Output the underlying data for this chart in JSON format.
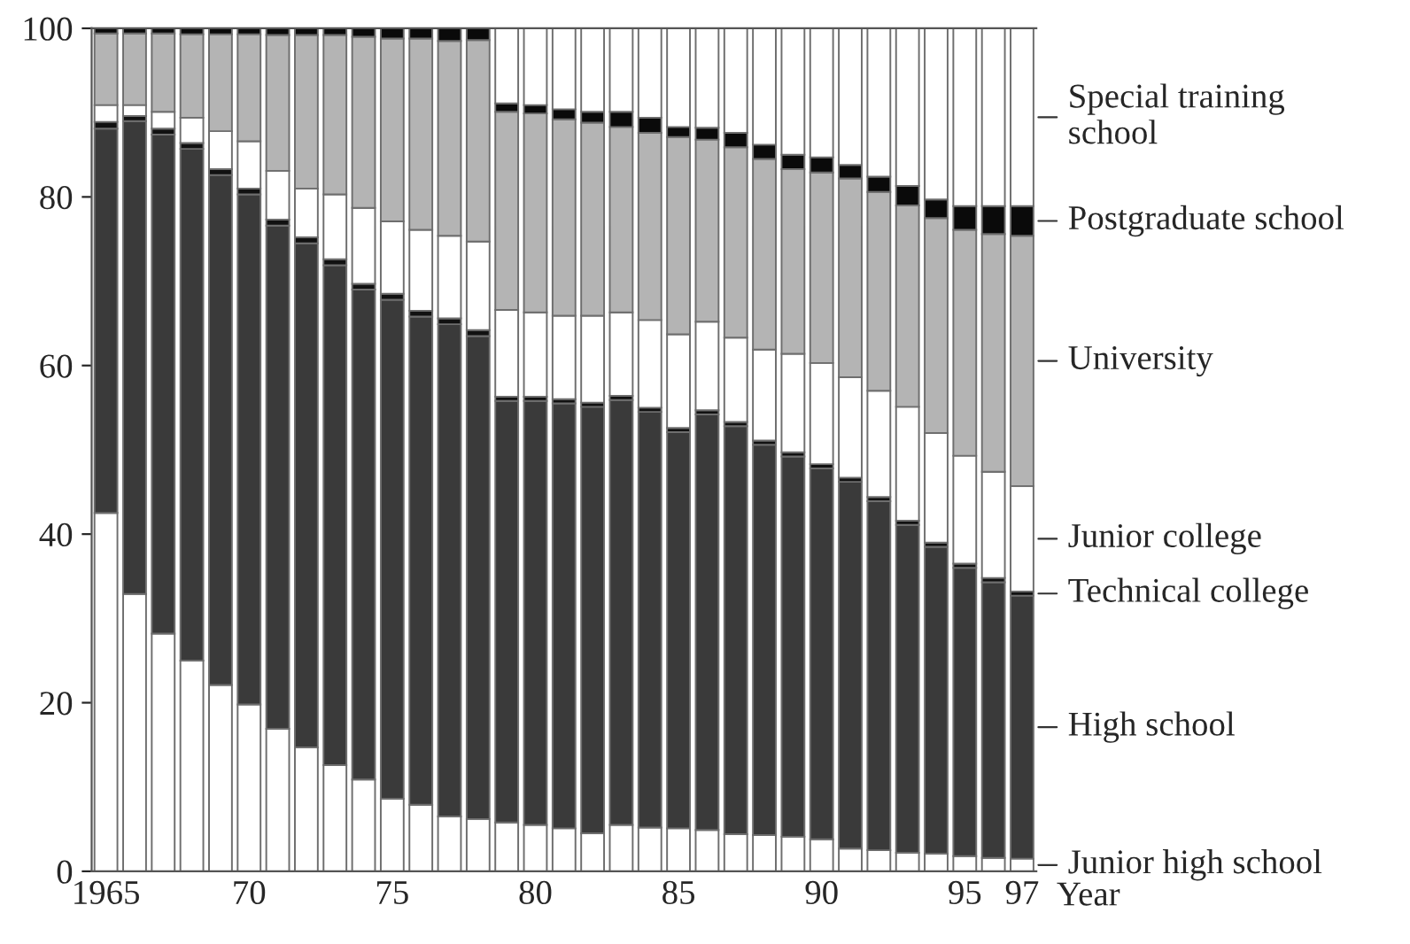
{
  "chart_data": {
    "type": "bar",
    "stacked": true,
    "xlabel": "Year",
    "legend": false,
    "grid": false,
    "categories": [
      "1965",
      null,
      null,
      null,
      null,
      "70",
      null,
      null,
      null,
      null,
      "75",
      null,
      null,
      null,
      null,
      "80",
      null,
      null,
      null,
      null,
      "85",
      null,
      null,
      null,
      null,
      "90",
      null,
      null,
      null,
      null,
      "95",
      null,
      "97"
    ],
    "ylim": [
      0,
      100
    ],
    "yticks": [
      0,
      20,
      40,
      60,
      80,
      100
    ],
    "series": [
      {
        "name": "Junior high school",
        "color": "#ffffff",
        "values": [
          42.5,
          32.9,
          28.2,
          25.0,
          22.1,
          19.8,
          16.9,
          14.7,
          12.6,
          10.9,
          8.6,
          7.9,
          6.5,
          6.2,
          5.8,
          5.5,
          5.1,
          4.5,
          5.5,
          5.2,
          5.1,
          4.9,
          4.4,
          4.3,
          4.1,
          3.8,
          2.7,
          2.5,
          2.2,
          2.1,
          1.8,
          1.6,
          1.5
        ]
      },
      {
        "name": "High school",
        "color": "#3a3a3a",
        "values": [
          45.6,
          56.1,
          59.2,
          60.7,
          60.5,
          60.5,
          59.7,
          59.8,
          59.3,
          58.1,
          59.2,
          57.9,
          58.4,
          57.3,
          50.0,
          50.3,
          50.4,
          50.6,
          50.4,
          49.3,
          47.0,
          49.3,
          48.4,
          46.3,
          45.1,
          44.0,
          43.5,
          41.4,
          38.9,
          36.4,
          34.2,
          32.7,
          31.2
        ]
      },
      {
        "name": "Technical college",
        "color": "#111111",
        "values": [
          0.8,
          0.6,
          0.7,
          0.7,
          0.7,
          0.7,
          0.7,
          0.7,
          0.7,
          0.7,
          0.7,
          0.7,
          0.7,
          0.7,
          0.5,
          0.5,
          0.5,
          0.5,
          0.5,
          0.5,
          0.5,
          0.5,
          0.5,
          0.5,
          0.5,
          0.5,
          0.5,
          0.5,
          0.5,
          0.5,
          0.5,
          0.5,
          0.5
        ]
      },
      {
        "name": "Junior college",
        "color": "#ffffff",
        "values": [
          2.0,
          1.3,
          2.0,
          3.0,
          4.5,
          5.6,
          5.8,
          5.8,
          7.7,
          9.0,
          8.6,
          9.6,
          9.8,
          10.5,
          10.3,
          10.0,
          9.9,
          10.3,
          9.9,
          10.4,
          11.1,
          10.5,
          10.0,
          10.8,
          11.7,
          12.0,
          11.9,
          12.6,
          13.5,
          13.0,
          12.8,
          12.6,
          12.5
        ]
      },
      {
        "name": "University",
        "color": "#b4b4b4",
        "values": [
          8.5,
          8.5,
          9.3,
          9.9,
          11.5,
          12.7,
          16.1,
          18.2,
          18.9,
          20.3,
          21.7,
          22.7,
          23.1,
          23.9,
          23.5,
          23.6,
          23.3,
          22.9,
          22.0,
          22.2,
          23.4,
          21.6,
          22.6,
          22.6,
          21.9,
          22.6,
          23.6,
          23.6,
          23.9,
          25.5,
          26.8,
          28.2,
          29.7
        ]
      },
      {
        "name": "Postgraduate school",
        "color": "#0a0a0a",
        "values": [
          0.6,
          0.6,
          0.6,
          0.7,
          0.7,
          0.7,
          0.8,
          0.8,
          0.8,
          1.0,
          1.2,
          1.2,
          1.5,
          1.4,
          1.0,
          1.0,
          1.2,
          1.3,
          1.8,
          1.8,
          1.2,
          1.4,
          1.7,
          1.7,
          1.7,
          1.8,
          1.6,
          1.8,
          2.3,
          2.2,
          2.8,
          3.3,
          3.5
        ]
      },
      {
        "name": "Special training\nschool",
        "color": "#ffffff",
        "values": [
          null,
          null,
          null,
          null,
          null,
          null,
          null,
          null,
          null,
          null,
          null,
          null,
          null,
          null,
          8.9,
          9.1,
          9.6,
          9.9,
          9.9,
          10.6,
          11.7,
          11.8,
          12.4,
          13.8,
          15.0,
          15.3,
          16.2,
          17.6,
          18.7,
          20.3,
          21.1,
          21.1,
          21.1
        ]
      }
    ]
  }
}
